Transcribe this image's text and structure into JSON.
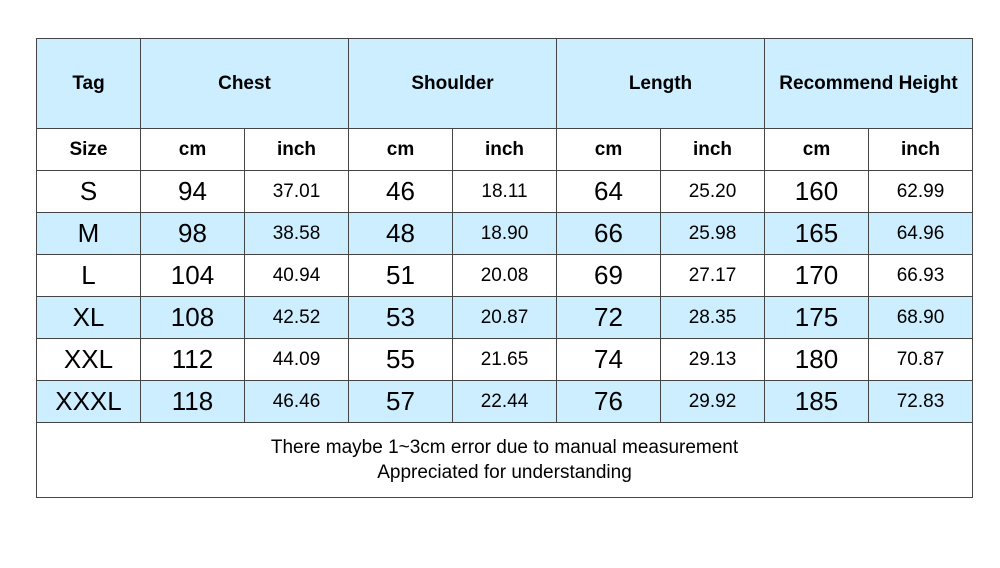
{
  "table": {
    "header": [
      "Tag",
      "Chest",
      "Shoulder",
      "Length",
      "Recommend Height"
    ],
    "subheader": [
      "Size",
      "cm",
      "inch",
      "cm",
      "inch",
      "cm",
      "inch",
      "cm",
      "inch"
    ],
    "rows": [
      [
        "S",
        "94",
        "37.01",
        "46",
        "18.11",
        "64",
        "25.20",
        "160",
        "62.99"
      ],
      [
        "M",
        "98",
        "38.58",
        "48",
        "18.90",
        "66",
        "25.98",
        "165",
        "64.96"
      ],
      [
        "L",
        "104",
        "40.94",
        "51",
        "20.08",
        "69",
        "27.17",
        "170",
        "66.93"
      ],
      [
        "XL",
        "108",
        "42.52",
        "53",
        "20.87",
        "72",
        "28.35",
        "175",
        "68.90"
      ],
      [
        "XXL",
        "112",
        "44.09",
        "55",
        "21.65",
        "74",
        "29.13",
        "180",
        "70.87"
      ],
      [
        "XXXL",
        "118",
        "46.46",
        "57",
        "22.44",
        "76",
        "29.92",
        "185",
        "72.83"
      ]
    ],
    "notes": [
      "There maybe 1~3cm error due to manual measurement",
      "Appreciated for understanding"
    ]
  }
}
